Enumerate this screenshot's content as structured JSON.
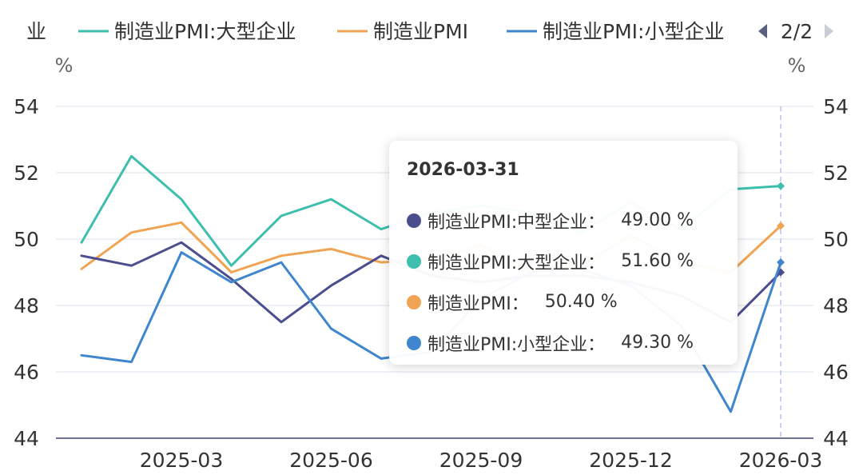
{
  "legend": {
    "items": [
      {
        "name": "制造业PMI:中型企业",
        "visible_text": "业",
        "color": "#4a4e8e"
      },
      {
        "name": "制造业PMI:大型企业",
        "visible_text": "制造业PMI:大型企业",
        "color": "#3ebfad"
      },
      {
        "name": "制造业PMI",
        "visible_text": "制造业PMI",
        "color": "#f0a453"
      },
      {
        "name": "制造业PMI:小型企业",
        "visible_text": "制造业PMI:小型企业",
        "color": "#3f86cf"
      }
    ],
    "page": "2/2"
  },
  "chart_data": {
    "type": "line",
    "x": [
      "2025-01",
      "2025-02",
      "2025-03",
      "2025-04",
      "2025-05",
      "2025-06",
      "2025-07",
      "2025-08",
      "2025-09",
      "2025-10",
      "2025-11",
      "2025-12",
      "2026-01",
      "2026-02",
      "2026-03"
    ],
    "x_tick_labels": [
      "2025-03",
      "2025-06",
      "2025-09",
      "2025-12",
      "2026-03"
    ],
    "y_ticks": [
      44,
      46,
      48,
      50,
      52,
      54
    ],
    "ylim": [
      44,
      54
    ],
    "left_unit": "%",
    "right_unit": "%",
    "series": [
      {
        "name": "制造业PMI:大型企业",
        "color": "#3ebfad",
        "values": [
          49.9,
          52.5,
          51.2,
          49.2,
          50.7,
          51.2,
          50.3,
          50.8,
          51.0,
          50.8,
          50.2,
          51.1,
          50.3,
          51.5,
          51.6
        ]
      },
      {
        "name": "制造业PMI",
        "color": "#f0a453",
        "values": [
          49.1,
          50.2,
          50.5,
          49.0,
          49.5,
          49.7,
          49.3,
          49.4,
          49.8,
          49.0,
          49.2,
          50.1,
          49.3,
          49.0,
          50.4
        ]
      },
      {
        "name": "制造业PMI:中型企业",
        "color": "#4a4e8e",
        "values": [
          49.5,
          49.2,
          49.9,
          48.8,
          47.5,
          48.6,
          49.5,
          48.9,
          48.7,
          48.9,
          48.9,
          48.7,
          48.3,
          47.5,
          49.0
        ]
      },
      {
        "name": "制造业PMI:小型企业",
        "color": "#3f86cf",
        "values": [
          46.5,
          46.3,
          49.6,
          48.7,
          49.3,
          47.3,
          46.4,
          46.6,
          48.2,
          49.0,
          49.1,
          48.6,
          47.4,
          44.8,
          49.3
        ]
      }
    ],
    "highlight_index": 14
  },
  "tooltip": {
    "title": "2026-03-31",
    "rows": [
      {
        "name": "制造业PMI:中型企业：",
        "value": "49.00 %",
        "color": "#4a4e8e"
      },
      {
        "name": "制造业PMI:大型企业：",
        "value": "51.60 %",
        "color": "#3ebfad"
      },
      {
        "name": "制造业PMI：",
        "value": "50.40 %",
        "color": "#f0a453"
      },
      {
        "name": "制造业PMI:小型企业：",
        "value": "49.30 %",
        "color": "#3f86cf"
      }
    ]
  },
  "colors": {
    "grid": "#e8ebf5",
    "axis": "#6e7191",
    "hover_line": "#b9c2e0",
    "text": "#333333"
  }
}
